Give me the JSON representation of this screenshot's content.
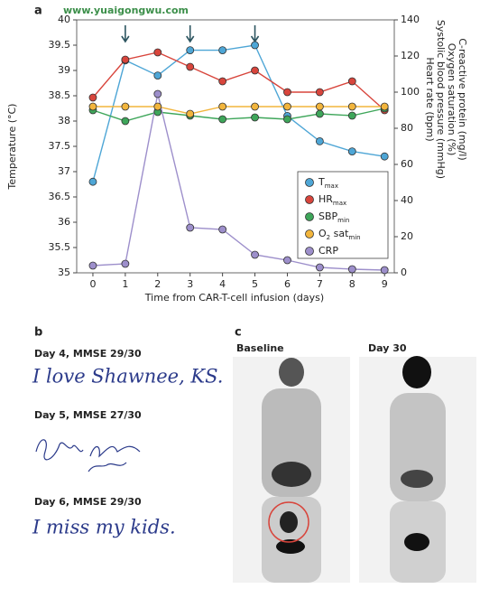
{
  "watermark": "www.yuaigongwu.com",
  "chart_data": {
    "type": "line",
    "panel": "a",
    "xlabel": "Time from CAR-T-cell infusion (days)",
    "ylabel": "Temperature (°C)",
    "y2labels": [
      "Heart rate (bpm)",
      "Systolic blood pressure (mmHg)",
      "Oxygen saturation (%)",
      "C-reactive protein (mg/l)"
    ],
    "x": [
      0,
      1,
      2,
      3,
      4,
      5,
      6,
      7,
      8,
      9
    ],
    "xlim": [
      -0.5,
      9.3
    ],
    "xticks": [
      0,
      1,
      2,
      3,
      4,
      5,
      6,
      7,
      8,
      9
    ],
    "ylim": [
      35,
      40
    ],
    "yticks": [
      35,
      35.5,
      36,
      36.5,
      37,
      37.5,
      38,
      38.5,
      39,
      39.5,
      40
    ],
    "y2lim": [
      0,
      140
    ],
    "y2ticks": [
      0,
      20,
      40,
      60,
      80,
      100,
      120,
      140
    ],
    "arrows": [
      1,
      3,
      5
    ],
    "series": [
      {
        "name": [
          "T",
          "max"
        ],
        "color": "#4ea6d6",
        "values": [
          36.8,
          39.2,
          38.9,
          39.4,
          39.4,
          39.5,
          38.1,
          37.6,
          37.4,
          37.3
        ]
      },
      {
        "name": [
          "HR",
          "max"
        ],
        "color": "#d8453c",
        "axis": "y2",
        "values": [
          97,
          118,
          122,
          114,
          106,
          112,
          100,
          100,
          106,
          90
        ]
      },
      {
        "name": [
          "SBP",
          "min"
        ],
        "color": "#3ea65a",
        "axis": "y2",
        "values": [
          90,
          84,
          89,
          87,
          85,
          86,
          85,
          88,
          87,
          91
        ]
      },
      {
        "name": [
          "O",
          "2",
          " sat",
          "min"
        ],
        "color": "#f2b53c",
        "axis": "y2",
        "values": [
          92,
          92,
          92,
          88,
          92,
          92,
          92,
          92,
          92,
          92
        ]
      },
      {
        "name": [
          "CRP"
        ],
        "color": "#9d8fcb",
        "axis": "y2",
        "values": [
          4,
          5,
          99,
          25,
          24,
          10,
          7,
          3,
          2,
          1.5
        ]
      }
    ]
  },
  "panel_b": {
    "label": "b",
    "samples": [
      {
        "caption": "Day 4, MMSE 29/30",
        "handwriting": "I love Shawnee, KS."
      },
      {
        "caption": "Day 5, MMSE 27/30"
      },
      {
        "caption": "Day 6, MMSE 29/30",
        "handwriting": "I miss my kids."
      }
    ]
  },
  "panel_c": {
    "label": "c",
    "images": [
      "Baseline",
      "Day 30"
    ]
  }
}
